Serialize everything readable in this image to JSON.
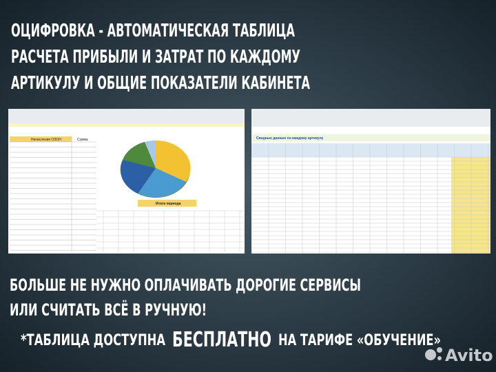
{
  "headline": {
    "lines": [
      "ОЦИФРОВКА - АВТОМАТИЧЕСКАЯ ТАБЛИЦА",
      "РАСЧЕТА ПРИБЫЛИ И ЗАТРАТ ПО КАЖДОМУ",
      "АРТИКУЛУ И ОБЩИЕ ПОКАЗАТЕЛИ КАБИНЕТА"
    ]
  },
  "left_screenshot": {
    "table_title": "Начисления ОЗОН",
    "column": "Сумма",
    "banner": "Итоги периода"
  },
  "right_screenshot": {
    "title": "Сводные данные по каждому артикулу"
  },
  "middle": {
    "lines": [
      "БОЛЬШЕ НЕ НУЖНО ОПЛАЧИВАТЬ ДОРОГИЕ СЕРВИСЫ",
      "ИЛИ СЧИТАТЬ ВСЁ В РУЧНУЮ!"
    ]
  },
  "footer": {
    "before": "*ТАБЛИЦА ДОСТУПНА",
    "highlight": "БЕСПЛАТНО",
    "after": "НА ТАРИФЕ «ОБУЧЕНИЕ»"
  },
  "watermark": "Avito"
}
